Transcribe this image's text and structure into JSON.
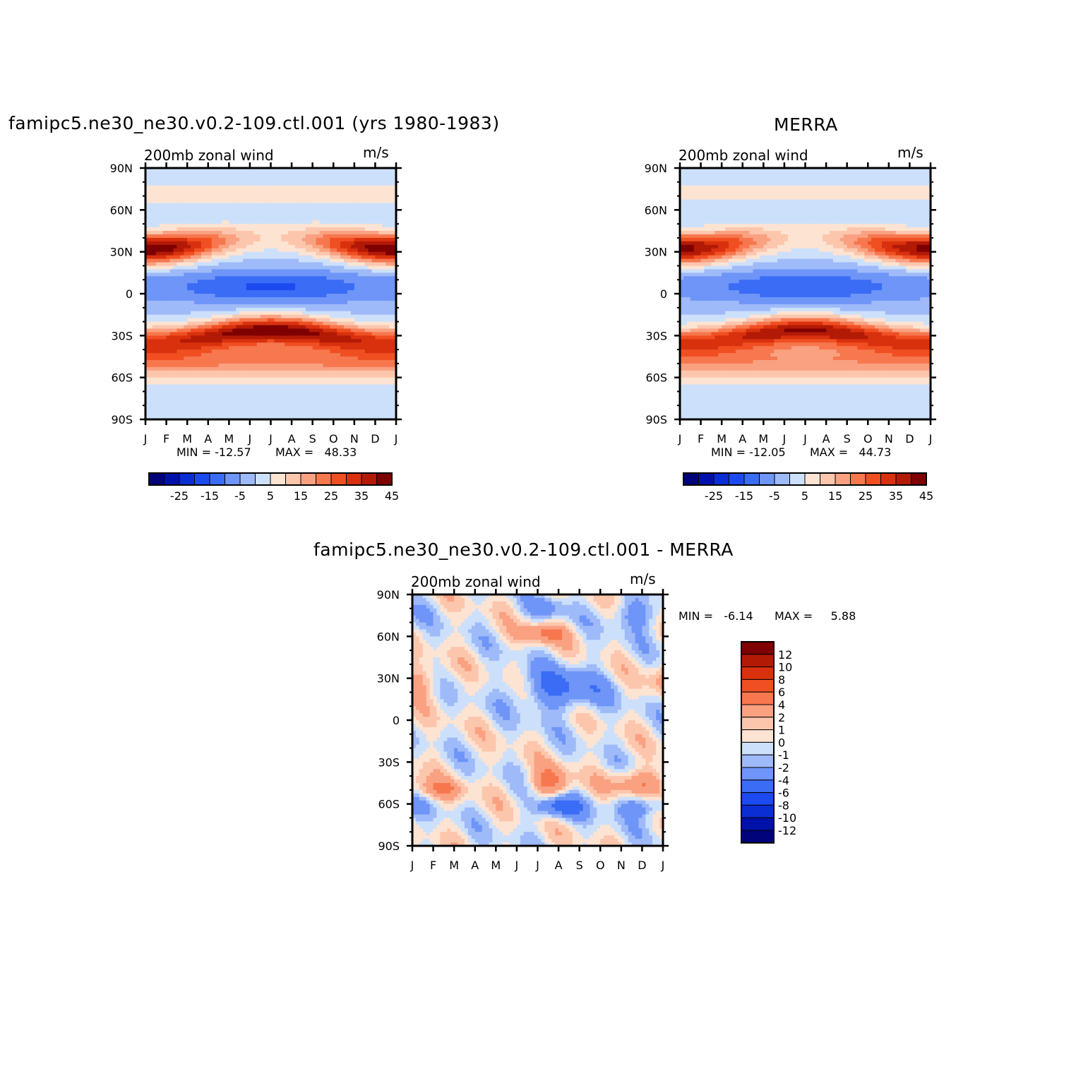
{
  "chart_data": [
    {
      "type": "heatmap",
      "title": "famipc5.ne30_ne30.v0.2-109.ctl.001 (yrs 1980-1983)",
      "subtitle": "200mb zonal wind",
      "units": "m/s",
      "x_tick_labels": [
        "J",
        "F",
        "M",
        "A",
        "M",
        "J",
        "J",
        "A",
        "S",
        "O",
        "N",
        "D",
        "J"
      ],
      "y_tick_labels": [
        "90N",
        "60N",
        "30N",
        "0",
        "30S",
        "60S",
        "90S"
      ],
      "y_values": [
        90,
        60,
        30,
        0,
        -30,
        -60,
        -90
      ],
      "xlim": [
        0,
        12
      ],
      "ylim": [
        -90,
        90
      ],
      "min_text": "MIN = -12.57",
      "max_text": "MAX =   48.33",
      "min": -12.57,
      "max": 48.33,
      "colorbar": {
        "orientation": "horizontal",
        "levels": [
          -30,
          -25,
          -20,
          -15,
          -10,
          -5,
          0,
          5,
          10,
          15,
          20,
          25,
          30,
          35,
          40,
          45
        ],
        "labels": [
          "-25",
          "-15",
          "-5",
          "5",
          "15",
          "25",
          "35",
          "45"
        ]
      }
    },
    {
      "type": "heatmap",
      "title": "MERRA",
      "subtitle": "200mb zonal wind",
      "units": "m/s",
      "x_tick_labels": [
        "J",
        "F",
        "M",
        "A",
        "M",
        "J",
        "J",
        "A",
        "S",
        "O",
        "N",
        "D",
        "J"
      ],
      "y_tick_labels": [
        "90N",
        "60N",
        "30N",
        "0",
        "30S",
        "60S",
        "90S"
      ],
      "y_values": [
        90,
        60,
        30,
        0,
        -30,
        -60,
        -90
      ],
      "xlim": [
        0,
        12
      ],
      "ylim": [
        -90,
        90
      ],
      "min_text": "MIN = -12.05",
      "max_text": "MAX =   44.73",
      "min": -12.05,
      "max": 44.73,
      "colorbar": {
        "orientation": "horizontal",
        "levels": [
          -30,
          -25,
          -20,
          -15,
          -10,
          -5,
          0,
          5,
          10,
          15,
          20,
          25,
          30,
          35,
          40,
          45
        ],
        "labels": [
          "-25",
          "-15",
          "-5",
          "5",
          "15",
          "25",
          "35",
          "45"
        ]
      }
    },
    {
      "type": "heatmap",
      "title": "famipc5.ne30_ne30.v0.2-109.ctl.001 - MERRA",
      "subtitle": "200mb zonal wind",
      "units": "m/s",
      "x_tick_labels": [
        "J",
        "F",
        "M",
        "A",
        "M",
        "J",
        "J",
        "A",
        "S",
        "O",
        "N",
        "D",
        "J"
      ],
      "y_tick_labels": [
        "90N",
        "60N",
        "30N",
        "0",
        "30S",
        "60S",
        "90S"
      ],
      "y_values": [
        90,
        60,
        30,
        0,
        -30,
        -60,
        -90
      ],
      "xlim": [
        0,
        12
      ],
      "ylim": [
        -90,
        90
      ],
      "min_text": "MIN =   -6.14",
      "max_text": "MAX =     5.88",
      "min": -6.14,
      "max": 5.88,
      "colorbar": {
        "orientation": "vertical",
        "levels": [
          -12,
          -10,
          -8,
          -6,
          -4,
          -2,
          -1,
          0,
          1,
          2,
          4,
          6,
          8,
          10,
          12
        ],
        "labels": [
          "12",
          "10",
          "8",
          "6",
          "4",
          "2",
          "1",
          "0",
          "-1",
          "-2",
          "-4",
          "-6",
          "-8",
          "-10",
          "-12"
        ]
      }
    }
  ],
  "palette": {
    "blues": [
      "#00037a",
      "#0011a9",
      "#0a2ed4",
      "#1b4bf0",
      "#3a6cf5",
      "#6e95f7",
      "#9fbaf9",
      "#cde0fb"
    ],
    "reds": [
      "#fde3d2",
      "#fcc6ad",
      "#f9a181",
      "#f7774e",
      "#f04f22",
      "#d9310e",
      "#b31a06",
      "#7e0000"
    ]
  }
}
